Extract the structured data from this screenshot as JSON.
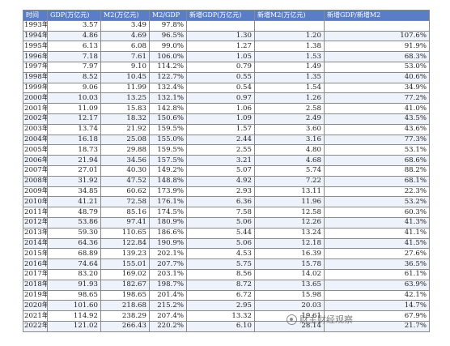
{
  "headers": [
    "时间",
    "GDP(万亿元)",
    "M2(万亿元)",
    "M2/GDP",
    "新增GDP(万亿元)",
    "新增M2(万亿元)",
    "新增GDP/新增M2"
  ],
  "rows": [
    [
      "1993年",
      "3.57",
      "3.49",
      "97.8%",
      "",
      "",
      ""
    ],
    [
      "1994年",
      "4.86",
      "4.69",
      "96.5%",
      "1.30",
      "1.20",
      "107.6%"
    ],
    [
      "1995年",
      "6.13",
      "6.08",
      "99.0%",
      "1.27",
      "1.38",
      "91.9%"
    ],
    [
      "1996年",
      "7.18",
      "7.61",
      "106.0%",
      "1.05",
      "1.53",
      "68.3%"
    ],
    [
      "1997年",
      "7.97",
      "9.10",
      "114.2%",
      "0.79",
      "1.49",
      "53.0%"
    ],
    [
      "1998年",
      "8.52",
      "10.45",
      "122.7%",
      "0.55",
      "1.35",
      "40.6%"
    ],
    [
      "1999年",
      "9.06",
      "11.99",
      "132.4%",
      "0.54",
      "1.54",
      "34.9%"
    ],
    [
      "2000年",
      "10.03",
      "13.25",
      "132.1%",
      "0.97",
      "1.26",
      "77.2%"
    ],
    [
      "2001年",
      "11.09",
      "15.83",
      "142.8%",
      "1.06",
      "2.58",
      "41.0%"
    ],
    [
      "2002年",
      "12.17",
      "18.32",
      "150.6%",
      "1.09",
      "2.49",
      "43.5%"
    ],
    [
      "2003年",
      "13.74",
      "21.92",
      "159.5%",
      "1.57",
      "3.60",
      "43.6%"
    ],
    [
      "2004年",
      "16.18",
      "25.08",
      "155.0%",
      "2.44",
      "3.16",
      "77.3%"
    ],
    [
      "2005年",
      "18.73",
      "29.88",
      "159.5%",
      "2.55",
      "4.80",
      "53.1%"
    ],
    [
      "2006年",
      "21.94",
      "34.56",
      "157.5%",
      "3.21",
      "4.68",
      "68.6%"
    ],
    [
      "2007年",
      "27.01",
      "40.30",
      "149.2%",
      "5.07",
      "5.74",
      "88.2%"
    ],
    [
      "2008年",
      "31.92",
      "47.52",
      "148.8%",
      "4.92",
      "7.22",
      "68.1%"
    ],
    [
      "2009年",
      "34.85",
      "60.62",
      "173.9%",
      "2.93",
      "13.11",
      "22.3%"
    ],
    [
      "2010年",
      "41.21",
      "72.58",
      "176.1%",
      "6.36",
      "11.96",
      "53.2%"
    ],
    [
      "2011年",
      "48.79",
      "85.16",
      "174.5%",
      "7.58",
      "12.58",
      "60.3%"
    ],
    [
      "2012年",
      "53.86",
      "97.41",
      "180.9%",
      "5.06",
      "12.26",
      "41.3%"
    ],
    [
      "2013年",
      "59.30",
      "110.65",
      "186.6%",
      "5.44",
      "13.24",
      "41.1%"
    ],
    [
      "2014年",
      "64.36",
      "122.84",
      "190.9%",
      "5.06",
      "12.18",
      "41.5%"
    ],
    [
      "2015年",
      "68.89",
      "139.23",
      "202.1%",
      "4.53",
      "16.39",
      "27.6%"
    ],
    [
      "2016年",
      "74.64",
      "155.01",
      "207.7%",
      "5.75",
      "15.78",
      "36.5%"
    ],
    [
      "2017年",
      "83.20",
      "169.02",
      "203.1%",
      "8.56",
      "14.02",
      "61.1%"
    ],
    [
      "2018年",
      "91.93",
      "182.67",
      "198.7%",
      "8.72",
      "13.65",
      "63.9%"
    ],
    [
      "2019年",
      "98.65",
      "198.65",
      "201.4%",
      "6.72",
      "15.98",
      "42.1%"
    ],
    [
      "2020年",
      "101.60",
      "218.68",
      "215.2%",
      "2.95",
      "20.03",
      "14.7%"
    ],
    [
      "2021年",
      "114.92",
      "238.29",
      "207.4%",
      "13.32",
      "19.61",
      "67.9%"
    ],
    [
      "2022年",
      "121.02",
      "266.43",
      "220.2%",
      "6.10",
      "28.14",
      "21.7%"
    ]
  ],
  "watermark": "财主财经观察"
}
